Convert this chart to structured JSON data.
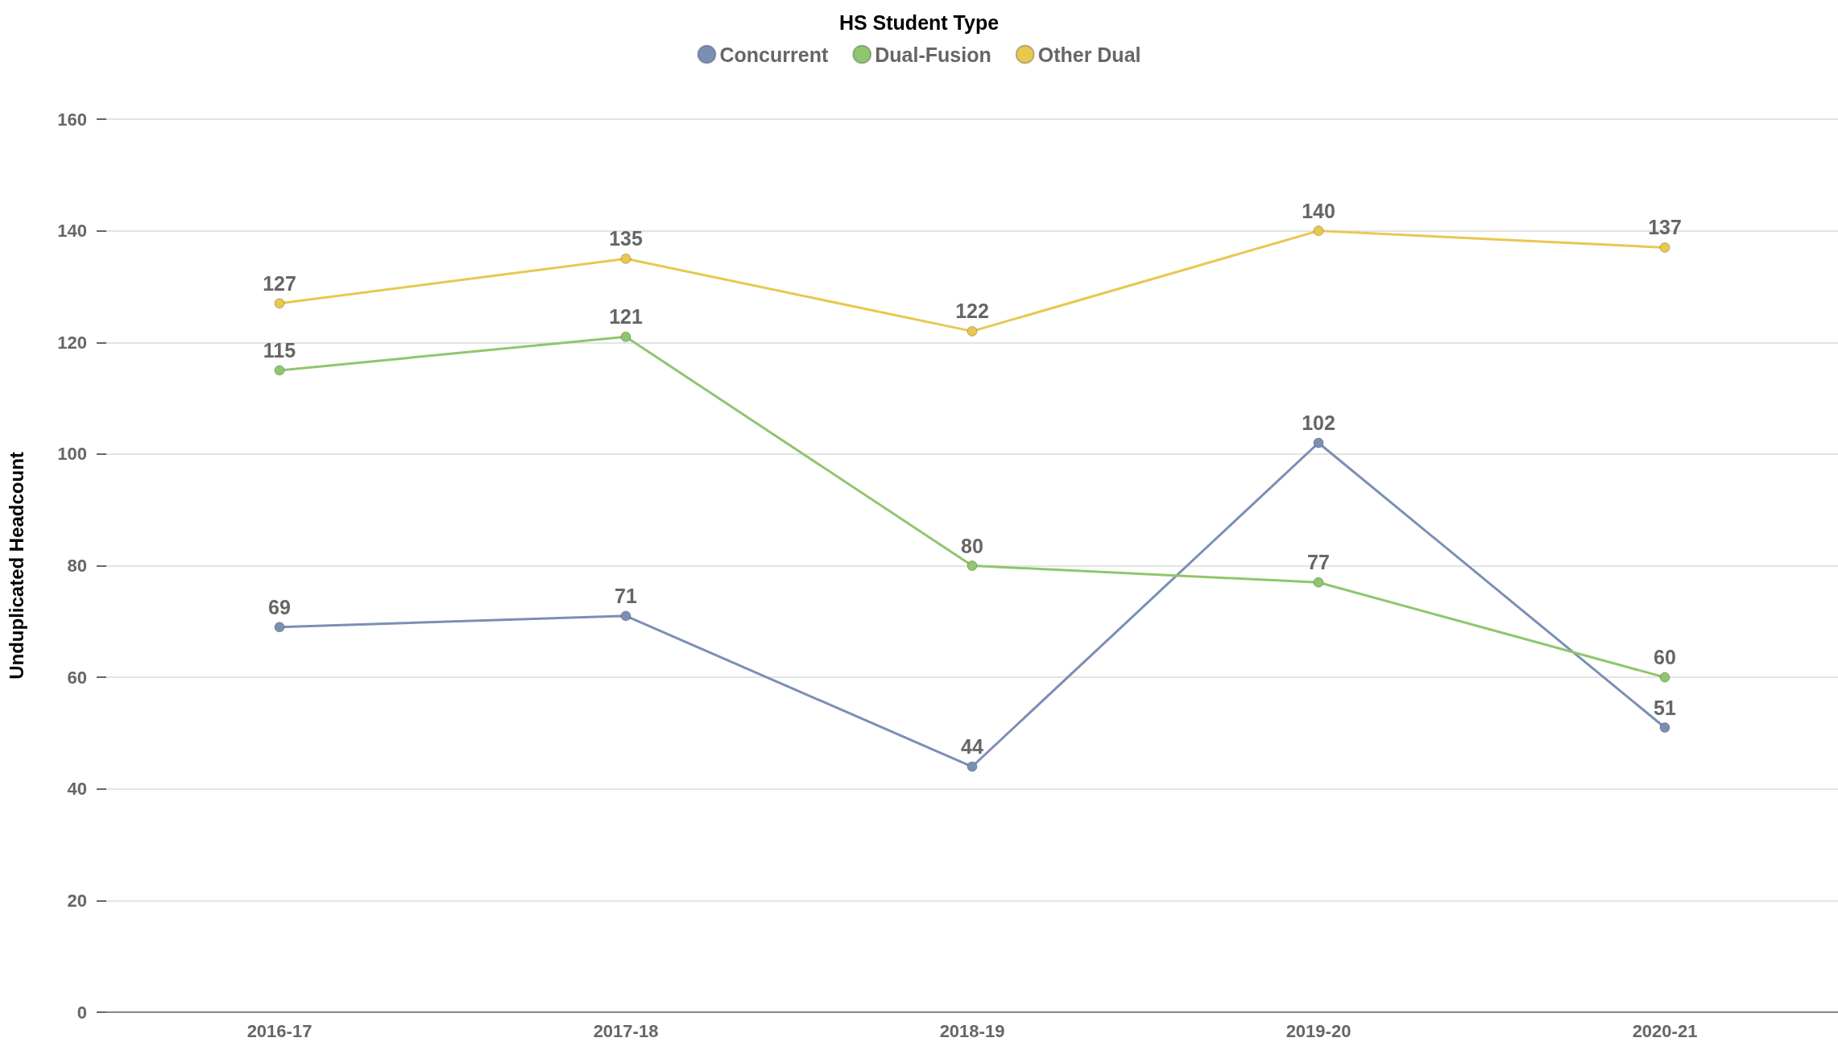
{
  "chart_data": {
    "type": "line",
    "legend_title": "HS Student Type",
    "ylabel": "Unduplicated Headcount",
    "categories": [
      "2016-17",
      "2017-18",
      "2018-19",
      "2019-20",
      "2020-21"
    ],
    "series": [
      {
        "name": "Concurrent",
        "color": "#7b8fb5",
        "values": [
          69,
          71,
          44,
          102,
          51
        ]
      },
      {
        "name": "Dual-Fusion",
        "color": "#8fc66e",
        "values": [
          115,
          121,
          80,
          77,
          60
        ]
      },
      {
        "name": "Other Dual",
        "color": "#e8c84f",
        "values": [
          127,
          135,
          122,
          140,
          137
        ]
      }
    ],
    "ylim": [
      0,
      160
    ],
    "yticks": [
      0,
      20,
      40,
      60,
      80,
      100,
      120,
      140,
      160
    ],
    "grid": "y",
    "legend": "top",
    "marker": "circle",
    "line_style": "solid",
    "data_labels": true
  }
}
